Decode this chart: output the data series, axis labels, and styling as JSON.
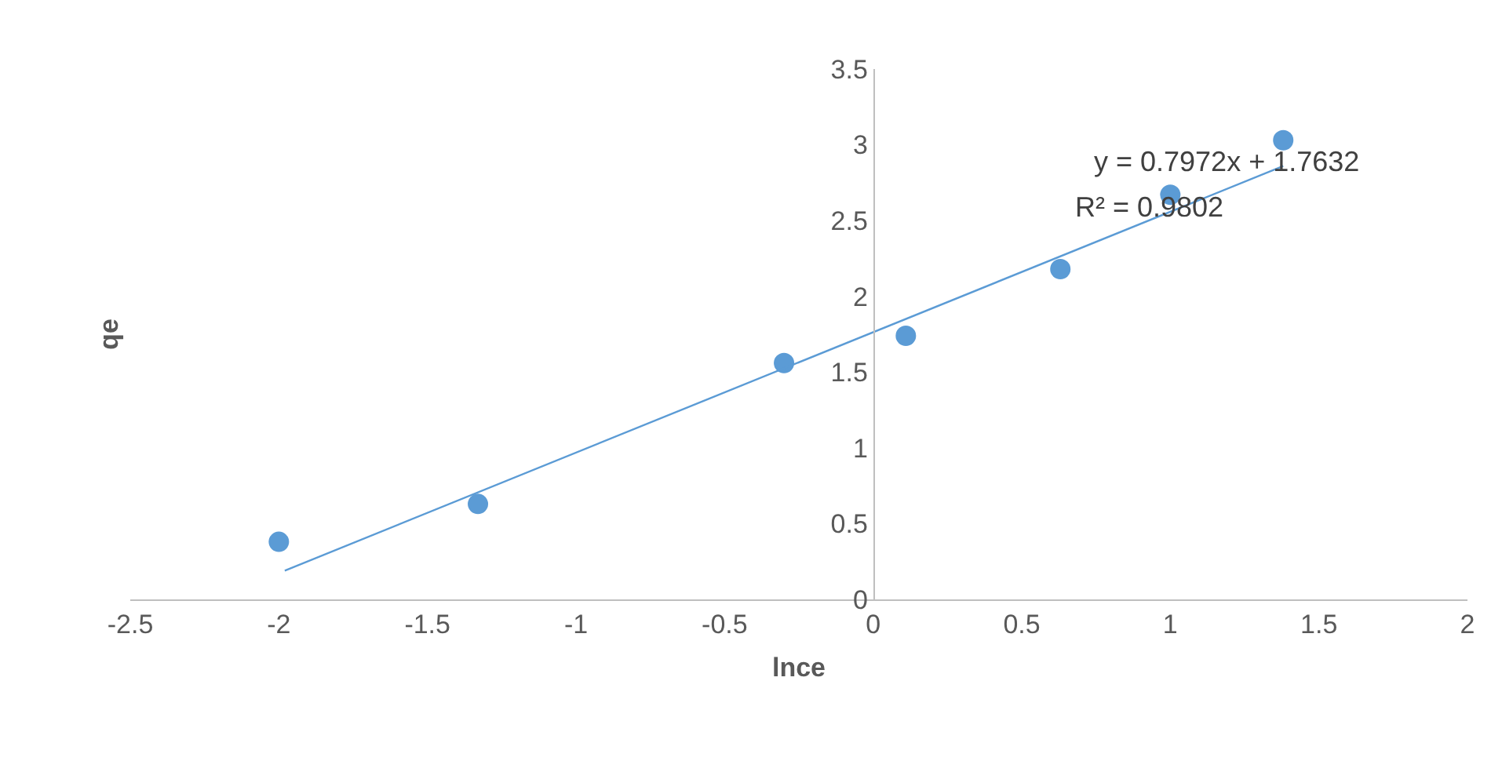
{
  "chart_data": {
    "type": "scatter",
    "xlabel": "lnce",
    "ylabel": "qe",
    "xlim": [
      -2.5,
      2
    ],
    "xticks": [
      -2.5,
      -2,
      -1.5,
      -1,
      -0.5,
      0,
      0.5,
      1,
      1.5,
      2
    ],
    "ylim": [
      0,
      3.5
    ],
    "yticks": [
      0,
      0.5,
      1,
      1.5,
      2,
      2.5,
      3,
      3.5
    ],
    "marker": "circle",
    "series": [
      {
        "color": "#5b9bd5",
        "x": [
          -2.0,
          -1.33,
          -0.3,
          0.11,
          0.63,
          1.0,
          1.38
        ],
        "values": [
          0.38,
          0.63,
          1.56,
          1.74,
          2.18,
          2.67,
          3.03
        ]
      },
      {
        "type": "line",
        "marker": "none",
        "color": "#5b9bd5",
        "x": [
          -1.98,
          1.38
        ],
        "values": [
          0.19,
          2.86
        ]
      }
    ],
    "annotations": [
      "y = 0.7972x + 1.7632",
      "R² = 0.9802"
    ]
  }
}
